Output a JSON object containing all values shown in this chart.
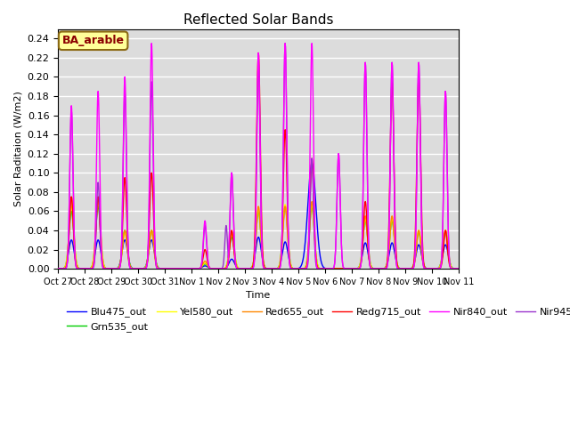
{
  "title": "Reflected Solar Bands",
  "xlabel": "Time",
  "ylabel": "Solar Raditaion (W/m2)",
  "annotation_text": "BA_arable",
  "annotation_color": "#8B0000",
  "annotation_bg": "#FFFF99",
  "annotation_edge": "#8B6914",
  "ylim": [
    0,
    0.25
  ],
  "yticks": [
    0.0,
    0.02,
    0.04,
    0.06,
    0.08,
    0.1,
    0.12,
    0.14,
    0.16,
    0.18,
    0.2,
    0.22,
    0.24
  ],
  "xtick_labels": [
    "Oct 27",
    "Oct 28",
    "Oct 29",
    "Oct 30",
    "Oct 31",
    "Nov 1",
    "Nov 2",
    "Nov 3",
    "Nov 4",
    "Nov 5",
    "Nov 6",
    "Nov 7",
    "Nov 8",
    "Nov 9",
    "Nov 10",
    "Nov 11"
  ],
  "series": {
    "Blu475_out": {
      "color": "#0000FF",
      "zorder": 4
    },
    "Grn535_out": {
      "color": "#00CC00",
      "zorder": 5
    },
    "Yel580_out": {
      "color": "#FFFF00",
      "zorder": 6
    },
    "Red655_out": {
      "color": "#FF8800",
      "zorder": 7
    },
    "Redg715_out": {
      "color": "#FF0000",
      "zorder": 8
    },
    "Nir840_out": {
      "color": "#FF00FF",
      "zorder": 10
    },
    "Nir945_out": {
      "color": "#9933CC",
      "zorder": 9
    }
  },
  "bg_color": "#DCDCDC",
  "grid_color": "#FFFFFF",
  "lw": 1.0,
  "figsize": [
    6.4,
    4.8
  ],
  "dpi": 100
}
